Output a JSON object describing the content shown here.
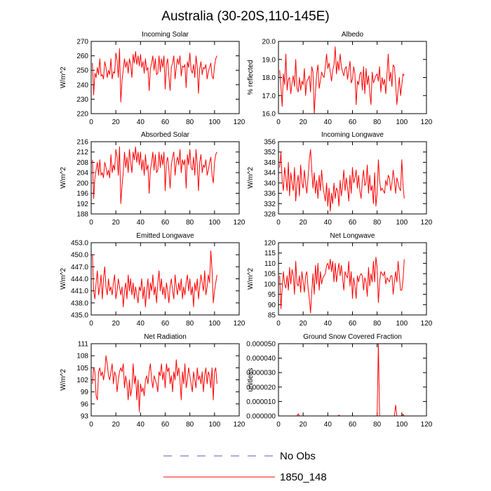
{
  "title": "Australia (30-20S,110-145E)",
  "legend": [
    {
      "label": "No Obs",
      "color": "#5c5cb0",
      "style": "dashed"
    },
    {
      "label": "1850_148",
      "color": "#ff0000",
      "style": "solid"
    }
  ],
  "chart_data": [
    {
      "type": "line",
      "title": "Incoming Solar",
      "ylabel": "W/m^2",
      "xlim": [
        0,
        120
      ],
      "ylim": [
        220,
        270
      ],
      "xticks": [
        "0",
        "20",
        "40",
        "60",
        "80",
        "100",
        "120"
      ],
      "yticks": [
        "220",
        "230",
        "240",
        "250",
        "260",
        "270"
      ],
      "series": [
        {
          "name": "1850_148",
          "color": "#ff0000",
          "values": [
            255,
            233,
            248,
            245,
            252,
            247,
            258,
            246,
            247,
            244,
            256,
            252,
            245,
            250,
            247,
            258,
            244,
            249,
            248,
            262,
            257,
            245,
            265,
            228,
            243,
            250,
            258,
            252,
            256,
            248,
            258,
            254,
            245,
            261,
            255,
            263,
            254,
            260,
            253,
            261,
            252,
            256,
            248,
            258,
            250,
            252,
            236,
            251,
            255,
            260,
            250,
            258,
            247,
            248,
            260,
            249,
            258,
            252,
            260,
            237,
            254,
            258,
            246,
            236,
            252,
            255,
            260,
            244,
            252,
            258,
            254,
            260,
            246,
            253,
            252,
            254,
            238,
            256,
            252,
            262,
            250,
            248,
            254,
            245,
            260,
            252,
            234,
            251,
            256,
            247,
            252,
            251,
            254,
            244,
            249,
            252,
            255,
            246,
            244,
            253,
            258,
            260
          ]
        }
      ]
    },
    {
      "type": "line",
      "title": "Albedo",
      "ylabel": "% reflected",
      "xlim": [
        0,
        120
      ],
      "ylim": [
        16.0,
        20.0
      ],
      "xticks": [
        "0",
        "20",
        "40",
        "60",
        "80",
        "100",
        "120"
      ],
      "yticks": [
        "16.0",
        "17.0",
        "18.0",
        "19.0",
        "20.0"
      ],
      "series": [
        {
          "name": "1850_148",
          "color": "#ff0000",
          "values": [
            18.4,
            17.5,
            16.4,
            18.2,
            17.6,
            19.3,
            17.3,
            17.9,
            18.0,
            17.1,
            17.7,
            18.1,
            17.5,
            19.0,
            17.4,
            17.2,
            18.0,
            17.3,
            17.8,
            17.6,
            18.5,
            17.0,
            17.8,
            17.9,
            18.1,
            17.2,
            18.6,
            18.3,
            15.8,
            17.2,
            18.2,
            18.7,
            17.4,
            17.8,
            18.3,
            18.1,
            18.0,
            18.6,
            19.3,
            18.5,
            18.8,
            18.3,
            17.8,
            18.4,
            18.7,
            19.7,
            18.2,
            18.9,
            18.4,
            19.3,
            18.6,
            18.3,
            18.1,
            18.5,
            18.6,
            17.9,
            18.4,
            18.9,
            17.7,
            17.9,
            18.6,
            18.2,
            16.5,
            17.8,
            17.6,
            18.2,
            18.3,
            17.3,
            18.6,
            17.1,
            18.5,
            17.6,
            18.1,
            17.2,
            16.5,
            18.3,
            17.7,
            17.9,
            18.1,
            18.2,
            17.8,
            18.6,
            17.2,
            18.0,
            17.6,
            17.9,
            17.1,
            18.2,
            19.3,
            17.8,
            18.3,
            17.5,
            18.7,
            18.6,
            17.7,
            16.5,
            17.3,
            18.0,
            17.0,
            17.6,
            18.2,
            18.1
          ]
        }
      ]
    },
    {
      "type": "line",
      "title": "Absorbed Solar",
      "ylabel": "W/m^2",
      "xlim": [
        0,
        120
      ],
      "ylim": [
        188,
        216
      ],
      "xticks": [
        "0",
        "20",
        "40",
        "60",
        "80",
        "100",
        "120"
      ],
      "yticks": [
        "188",
        "192",
        "196",
        "200",
        "204",
        "208",
        "212",
        "216"
      ],
      "series": [
        {
          "name": "1850_148",
          "color": "#ff0000",
          "values": [
            209,
            194,
            202,
            205,
            208,
            203,
            209,
            203,
            204,
            202,
            208,
            206,
            203,
            205,
            202,
            211,
            204,
            207,
            205,
            213,
            210,
            203,
            214,
            192,
            199,
            204,
            212,
            206,
            210,
            204,
            213,
            208,
            204,
            212,
            209,
            214,
            208,
            212,
            207,
            212,
            205,
            209,
            203,
            211,
            205,
            207,
            196,
            205,
            208,
            212,
            205,
            211,
            204,
            205,
            212,
            206,
            211,
            207,
            212,
            197,
            208,
            210,
            205,
            198,
            207,
            210,
            212,
            203,
            208,
            210,
            207,
            213,
            204,
            209,
            207,
            209,
            198,
            211,
            207,
            213,
            206,
            205,
            210,
            203,
            213,
            207,
            197,
            208,
            211,
            204,
            207,
            206,
            209,
            203,
            205,
            208,
            210,
            203,
            200,
            208,
            211,
            212
          ]
        }
      ]
    },
    {
      "type": "line",
      "title": "Incoming Longwave",
      "ylabel": "W/m^2",
      "xlim": [
        0,
        120
      ],
      "ylim": [
        328,
        356
      ],
      "xticks": [
        "0",
        "20",
        "40",
        "60",
        "80",
        "100",
        "120"
      ],
      "yticks": [
        "328",
        "332",
        "336",
        "340",
        "344",
        "348",
        "352",
        "356"
      ],
      "series": [
        {
          "name": "1850_148",
          "color": "#ff0000",
          "values": [
            346,
            352,
            341,
            337,
            346,
            342,
            337,
            348,
            335,
            344,
            340,
            337,
            346,
            333,
            340,
            343,
            335,
            347,
            340,
            338,
            345,
            340,
            336,
            342,
            349,
            353,
            345,
            338,
            344,
            336,
            341,
            334,
            343,
            337,
            345,
            339,
            336,
            333,
            340,
            331,
            338,
            329,
            336,
            332,
            340,
            334,
            338,
            337,
            331,
            341,
            335,
            339,
            345,
            337,
            342,
            338,
            333,
            343,
            336,
            346,
            340,
            342,
            345,
            338,
            343,
            337,
            334,
            341,
            345,
            339,
            340,
            347,
            336,
            343,
            337,
            339,
            332,
            344,
            331,
            336,
            349,
            341,
            337,
            338,
            337,
            336,
            341,
            339,
            343,
            342,
            337,
            340,
            345,
            341,
            336,
            342,
            340,
            338,
            337,
            349,
            339,
            334
          ]
        }
      ]
    },
    {
      "type": "line",
      "title": "Emitted Longwave",
      "ylabel": "W/m^2",
      "xlim": [
        0,
        120
      ],
      "ylim": [
        435.0,
        453.0
      ],
      "xticks": [
        "0",
        "20",
        "40",
        "60",
        "80",
        "100",
        "120"
      ],
      "yticks": [
        "435.0",
        "438.0",
        "441.0",
        "444.0",
        "447.0",
        "450.0",
        "453.0"
      ],
      "series": [
        {
          "name": "1850_148",
          "color": "#ff0000",
          "values": [
            450,
            441,
            439,
            443,
            446,
            440,
            442,
            445,
            439,
            444,
            447,
            442,
            440,
            444,
            441,
            442,
            440,
            443,
            445,
            439,
            441,
            444,
            442,
            440,
            442,
            437,
            441,
            443,
            439,
            445,
            441,
            444,
            440,
            443,
            439,
            442,
            440,
            438,
            442,
            441,
            444,
            439,
            442,
            437,
            441,
            444,
            439,
            443,
            441,
            445,
            440,
            442,
            438,
            443,
            446,
            441,
            444,
            440,
            442,
            439,
            443,
            441,
            438,
            442,
            444,
            441,
            439,
            445,
            442,
            440,
            443,
            441,
            444,
            439,
            442,
            440,
            443,
            445,
            441,
            444,
            440,
            442,
            437,
            443,
            441,
            444,
            439,
            442,
            445,
            443,
            441,
            446,
            440,
            442,
            445,
            443,
            451,
            446,
            438,
            441,
            443,
            445
          ]
        }
      ]
    },
    {
      "type": "line",
      "title": "Net Longwave",
      "ylabel": "W/m^2",
      "xlim": [
        0,
        120
      ],
      "ylim": [
        85,
        120
      ],
      "xticks": [
        "0",
        "20",
        "40",
        "60",
        "80",
        "100",
        "120"
      ],
      "yticks": [
        "85",
        "90",
        "95",
        "100",
        "105",
        "110",
        "115",
        "120"
      ],
      "series": [
        {
          "name": "1850_148",
          "color": "#ff0000",
          "values": [
            104,
            88,
            98,
            106,
            100,
            98,
            104,
            97,
            108,
            100,
            107,
            104,
            95,
            111,
            100,
            99,
            104,
            96,
            106,
            101,
            96,
            104,
            106,
            98,
            93,
            86,
            96,
            105,
            95,
            109,
            100,
            110,
            97,
            106,
            100,
            103,
            104,
            105,
            109,
            110,
            107,
            112,
            106,
            111,
            101,
            110,
            101,
            106,
            110,
            104,
            109,
            103,
            97,
            106,
            104,
            103,
            111,
            99,
            106,
            93,
            103,
            99,
            93,
            104,
            101,
            104,
            105,
            104,
            97,
            103,
            101,
            94,
            108,
            99,
            105,
            101,
            111,
            101,
            113,
            108,
            91,
            101,
            106,
            105,
            104,
            106,
            100,
            103,
            102,
            101,
            104,
            104,
            95,
            101,
            106,
            101,
            111,
            104,
            97,
            97,
            102,
            112
          ]
        }
      ]
    },
    {
      "type": "line",
      "title": "Net Radiation",
      "ylabel": "W/m^2",
      "xlim": [
        0,
        120
      ],
      "ylim": [
        93,
        111
      ],
      "xticks": [
        "0",
        "20",
        "40",
        "60",
        "80",
        "100",
        "120"
      ],
      "yticks": [
        "93",
        "96",
        "99",
        "102",
        "105",
        "108",
        "111"
      ],
      "series": [
        {
          "name": "1850_148",
          "color": "#ff0000",
          "values": [
            101,
            105,
            104,
            98,
            97,
            104,
            105,
            103,
            104,
            102,
            104,
            108,
            106,
            103,
            102,
            104,
            106,
            101,
            104,
            103,
            99,
            102,
            104,
            105,
            104,
            106,
            100,
            103,
            101,
            97,
            102,
            98,
            100,
            106,
            101,
            103,
            97,
            102,
            94,
            101,
            99,
            100,
            98,
            102,
            103,
            101,
            104,
            106,
            102,
            100,
            103,
            102,
            101,
            99,
            104,
            103,
            106,
            102,
            104,
            100,
            106,
            104,
            105,
            101,
            103,
            99,
            104,
            102,
            107,
            103,
            105,
            102,
            97,
            104,
            101,
            106,
            100,
            102,
            105,
            103,
            101,
            99,
            104,
            102,
            100,
            105,
            102,
            103,
            101,
            104,
            99,
            103,
            105,
            101,
            104,
            103,
            100,
            105,
            97,
            104,
            105,
            101
          ]
        }
      ]
    },
    {
      "type": "line",
      "title": "Ground Snow Covered Fraction",
      "ylabel": "unitless",
      "xlim": [
        0,
        120
      ],
      "ylim": [
        0.0,
        5e-05
      ],
      "xticks": [
        "0",
        "20",
        "40",
        "60",
        "80",
        "100",
        "120"
      ],
      "yticks": [
        "0.000000",
        "0.000010",
        "0.000020",
        "0.000030",
        "0.000040",
        "0.000050"
      ],
      "series": [
        {
          "name": "1850_148",
          "color": "#ff0000",
          "values": [
            0,
            0,
            0,
            0,
            0,
            0,
            0,
            0,
            0,
            0,
            0,
            0,
            0,
            0,
            0,
            1.5e-06,
            0,
            0,
            0,
            0,
            0,
            0,
            0,
            0,
            0,
            0,
            0,
            0,
            0,
            0,
            0,
            0,
            0,
            0,
            0,
            0,
            0,
            0,
            0,
            0,
            0,
            0,
            0,
            0,
            0,
            0,
            0,
            0,
            5e-07,
            0,
            0,
            0,
            0,
            0,
            0,
            0,
            0,
            0,
            0,
            0,
            0,
            0,
            0,
            0,
            0,
            0,
            0,
            0,
            0,
            0,
            0,
            0,
            0,
            0,
            0,
            0,
            0,
            0,
            0,
            0,
            5.1e-05,
            0,
            0,
            0,
            0,
            0,
            0,
            0,
            0,
            0,
            0,
            0,
            0,
            0,
            7.5e-06,
            0,
            0,
            0,
            0,
            0,
            1.2e-06,
            0
          ]
        }
      ]
    }
  ]
}
